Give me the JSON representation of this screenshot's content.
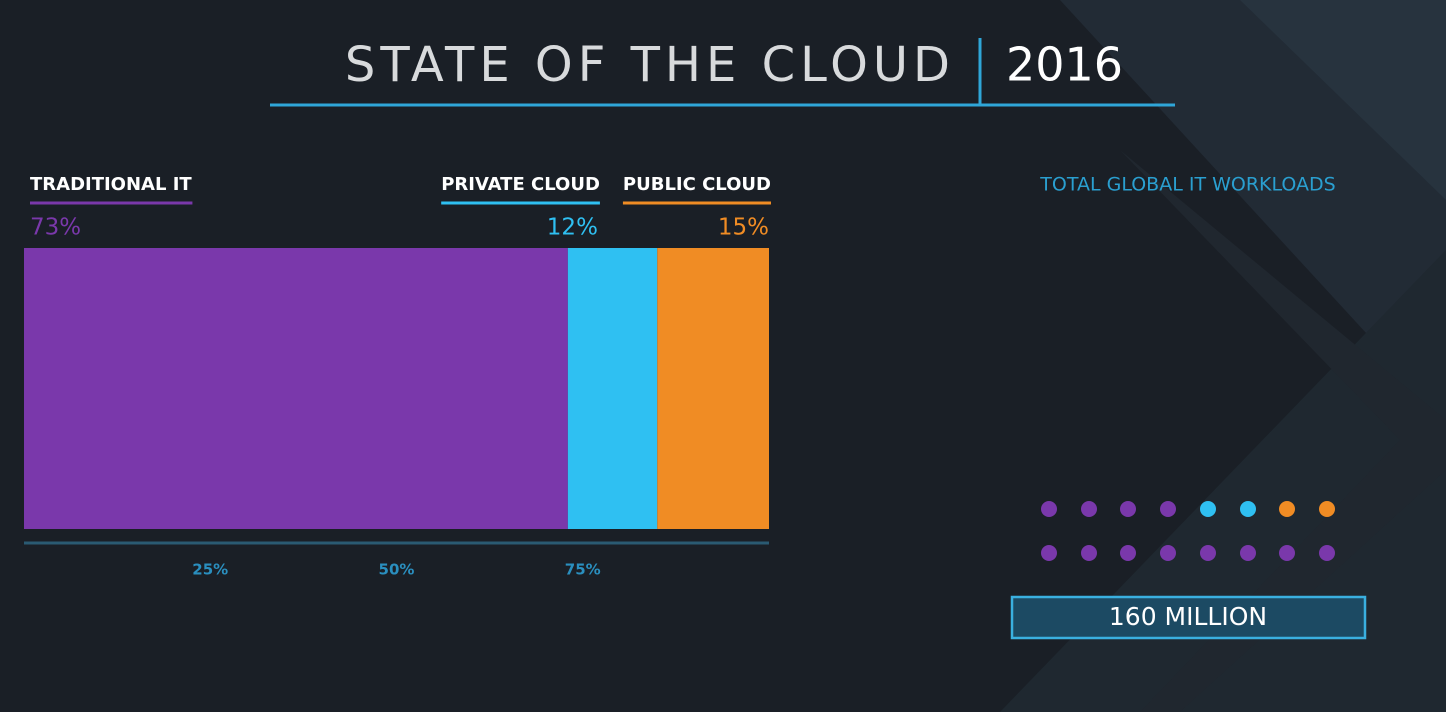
{
  "chart_data": {
    "type": "stacked_bar",
    "title": "STATE OF THE CLOUD",
    "subtitle": "2016",
    "series": [
      {
        "name": "TRADITIONAL IT",
        "color": "#7a38ab",
        "values": [
          73
        ],
        "value_labels": [
          "73%"
        ]
      },
      {
        "name": "PRIVATE CLOUD",
        "color": "#2fc0f2",
        "values": [
          12
        ],
        "value_labels": [
          "12%"
        ]
      },
      {
        "name": "PUBLIC CLOUD",
        "color": "#f08c24",
        "values": [
          15
        ],
        "value_labels": [
          "15%"
        ]
      }
    ],
    "xlim": [
      0,
      100
    ],
    "xticks": [
      {
        "value": 25,
        "label": "25%"
      },
      {
        "value": 50,
        "label": "50%"
      },
      {
        "value": 75,
        "label": "75%"
      }
    ],
    "annotations": [
      "TOTAL GLOBAL IT WORKLOADS",
      "160 MILLION"
    ]
  }
}
